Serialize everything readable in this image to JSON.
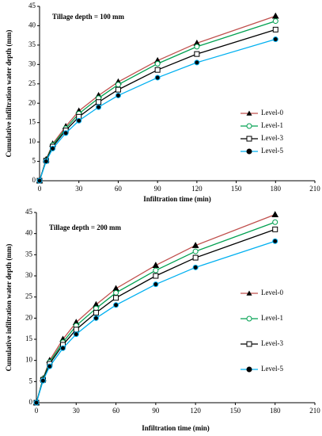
{
  "chart_data": [
    {
      "type": "line",
      "annotation": "Tillage depth = 100 mm",
      "xlabel": "Infiltration time (min)",
      "ylabel": "Cumulative infiltration water depth (mm)",
      "x": [
        0,
        5,
        10,
        20,
        30,
        45,
        60,
        90,
        120,
        180
      ],
      "xlim": [
        0,
        210
      ],
      "xticks": [
        0,
        30,
        60,
        90,
        120,
        150,
        180,
        210
      ],
      "ylim": [
        0,
        45
      ],
      "yticks": [
        0,
        5,
        10,
        15,
        20,
        25,
        30,
        35,
        40,
        45
      ],
      "series": [
        {
          "name": "Level-0",
          "color": "#c0504d",
          "marker": "triangle",
          "marker_fill": "#000000",
          "values": [
            0,
            5.5,
            9.5,
            14,
            18,
            22,
            25.5,
            31,
            35.5,
            42.5
          ]
        },
        {
          "name": "Level-1",
          "color": "#00a050",
          "marker": "circle",
          "marker_fill": "#ffffff",
          "values": [
            0,
            5.3,
            9.2,
            13.5,
            17.3,
            21.3,
            24.8,
            30.2,
            34.6,
            41.2
          ]
        },
        {
          "name": "Level-3",
          "color": "#000000",
          "marker": "square",
          "marker_fill": "#ffffff",
          "values": [
            0,
            5.2,
            8.8,
            13,
            16.5,
            20.3,
            23.5,
            28.6,
            32.7,
            39
          ]
        },
        {
          "name": "Level-5",
          "color": "#00b0f0",
          "marker": "circle",
          "marker_fill": "#000000",
          "values": [
            0,
            5,
            8.3,
            12.3,
            15.5,
            19,
            22,
            26.6,
            30.5,
            36.5
          ]
        }
      ]
    },
    {
      "type": "line",
      "annotation": "Tillage depth = 200 mm",
      "xlabel": "Infiltration time (min)",
      "ylabel": "Cumulative infiltration water depth (mm)",
      "x": [
        0,
        5,
        10,
        20,
        30,
        45,
        60,
        90,
        120,
        180
      ],
      "xlim": [
        0,
        210
      ],
      "xticks": [
        0,
        30,
        60,
        90,
        120,
        150,
        180,
        210
      ],
      "ylim": [
        0,
        45
      ],
      "yticks": [
        0,
        5,
        10,
        15,
        20,
        25,
        30,
        35,
        40,
        45
      ],
      "series": [
        {
          "name": "Level-0",
          "color": "#c0504d",
          "marker": "triangle",
          "marker_fill": "#000000",
          "values": [
            0,
            5.7,
            10,
            15,
            19,
            23.2,
            27,
            32.5,
            37.2,
            44.5
          ]
        },
        {
          "name": "Level-1",
          "color": "#00a050",
          "marker": "circle",
          "marker_fill": "#ffffff",
          "values": [
            0,
            5.6,
            9.6,
            14.3,
            18.2,
            22.3,
            26,
            31.3,
            35.8,
            42.7
          ]
        },
        {
          "name": "Level-3",
          "color": "#000000",
          "marker": "square",
          "marker_fill": "#ffffff",
          "values": [
            0,
            5.4,
            9.2,
            13.7,
            17.3,
            21.3,
            24.8,
            30,
            34.3,
            41
          ]
        },
        {
          "name": "Level-5",
          "color": "#00b0f0",
          "marker": "circle",
          "marker_fill": "#000000",
          "values": [
            0,
            5.2,
            8.6,
            12.9,
            16.2,
            20,
            23.1,
            28,
            32,
            38.2
          ]
        }
      ]
    }
  ]
}
